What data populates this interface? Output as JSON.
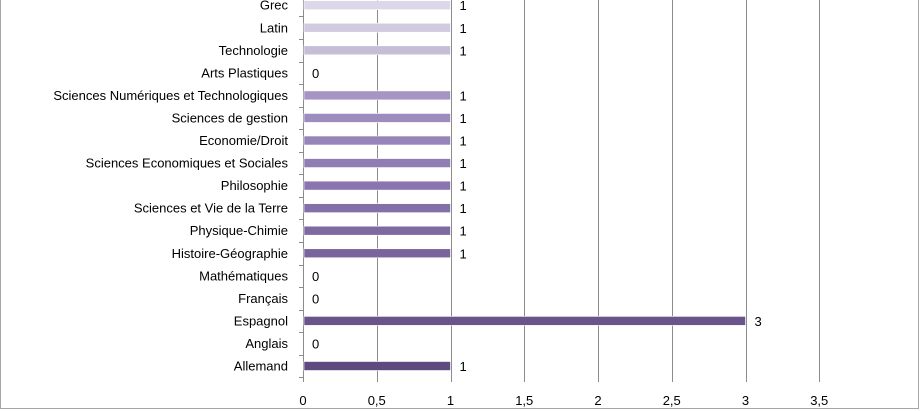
{
  "chart_data": {
    "type": "bar",
    "orientation": "horizontal",
    "categories": [
      "Allemand",
      "Anglais",
      "Espagnol",
      "Français",
      "Mathématiques",
      "Histoire-Géographie",
      "Physique-Chimie",
      "Sciences et Vie de la Terre",
      "Philosophie",
      "Sciences Economiques et Sociales",
      "Economie/Droit",
      "Sciences de gestion",
      "Sciences Numériques et Technologiques",
      "Arts Plastiques",
      "Technologie",
      "Latin",
      "Grec"
    ],
    "values": [
      1,
      0,
      3,
      0,
      0,
      1,
      1,
      1,
      1,
      1,
      1,
      1,
      1,
      0,
      1,
      1,
      1
    ],
    "xlim": [
      0,
      3.5
    ],
    "x_ticks": [
      0,
      0.5,
      1,
      1.5,
      2,
      2.5,
      3,
      3.5
    ],
    "x_tick_labels": [
      "0",
      "0,5",
      "1",
      "1,5",
      "2",
      "2,5",
      "3",
      "3,5"
    ],
    "grid": "vertical",
    "data_labels": true,
    "bar_colors": [
      "#5e4a7e",
      "#634f84",
      "#69558a",
      "#6f5a91",
      "#755f97",
      "#7a649c",
      "#7f69a2",
      "#846fa8",
      "#8a76ae",
      "#907db3",
      "#9784b8",
      "#9e8cbe",
      "#a694c3",
      "#ae9dc9",
      "#c6bdd6",
      "#d2cbe0",
      "#ddd8e9"
    ]
  }
}
